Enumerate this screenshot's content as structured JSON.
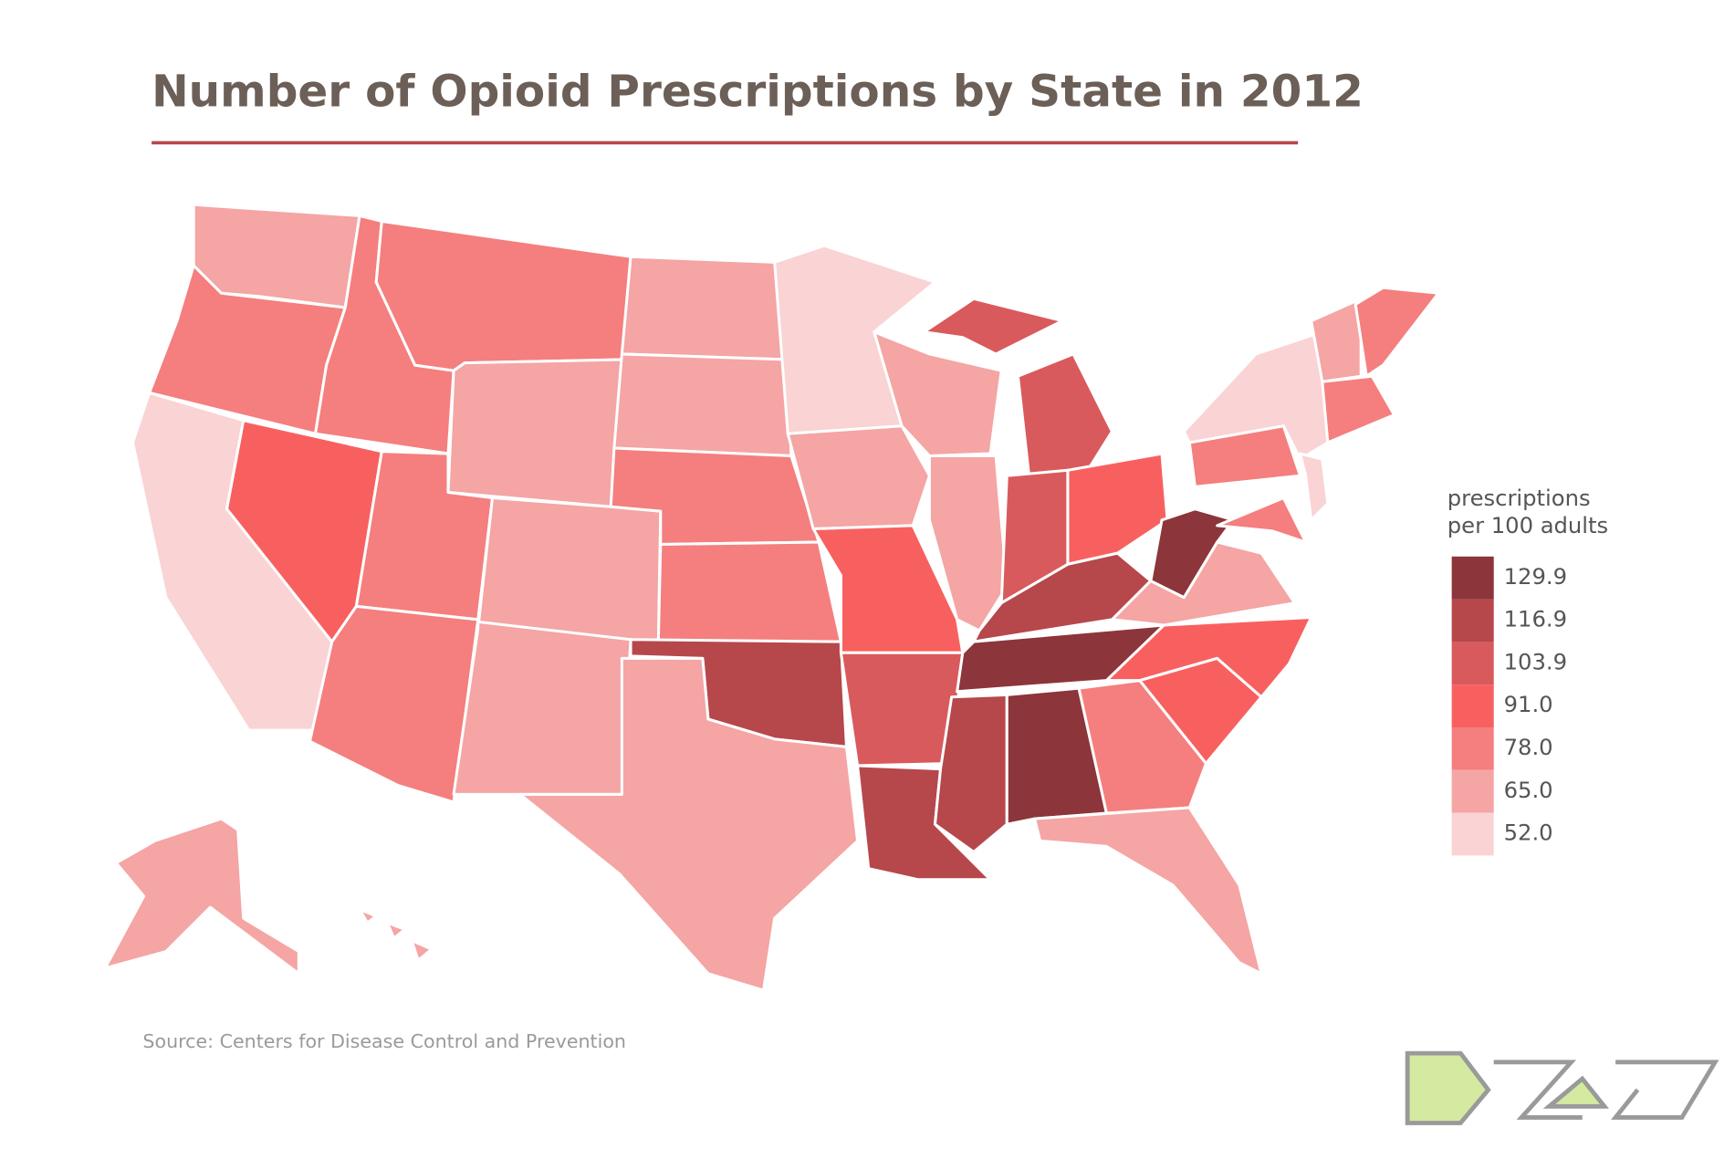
{
  "title": "Number of Opioid Prescriptions by State in 2012",
  "legend": {
    "title": [
      "prescriptions",
      "per 100 adults"
    ],
    "values": [
      129.9,
      116.9,
      103.9,
      91,
      78,
      65,
      52
    ],
    "value_labels": [
      "129.9",
      "116.9",
      "103.9",
      "91.0",
      "78.0",
      "65.0",
      "52.0"
    ],
    "colors": [
      "#8c353a",
      "#b6474b",
      "#d95a5c",
      "#f86060",
      "#f47f7e",
      "#f4a5a4",
      "#fad3d4"
    ]
  },
  "source": "Source: Centers for Disease Control and Prevention"
}
